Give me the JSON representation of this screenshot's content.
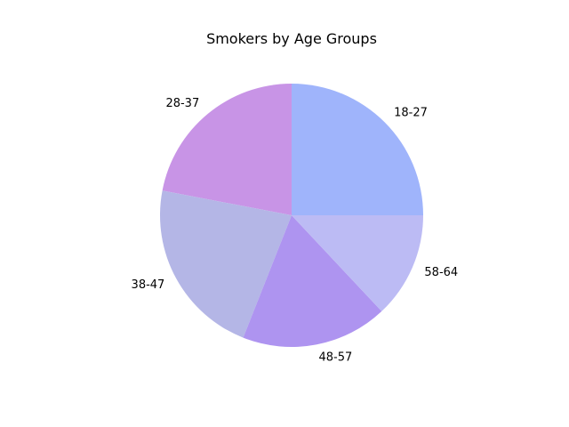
{
  "chart_data": {
    "type": "pie",
    "title": "Smokers by Age Groups",
    "labels": [
      "18-27",
      "28-37",
      "38-47",
      "48-57",
      "58-64"
    ],
    "values": [
      25,
      22,
      22,
      18,
      13
    ],
    "colors": [
      "#9fb4fb",
      "#c894e6",
      "#b4b6e6",
      "#ae94f0",
      "#bcbbf4"
    ],
    "start_angle_deg": 0,
    "direction": "counterclockwise"
  }
}
